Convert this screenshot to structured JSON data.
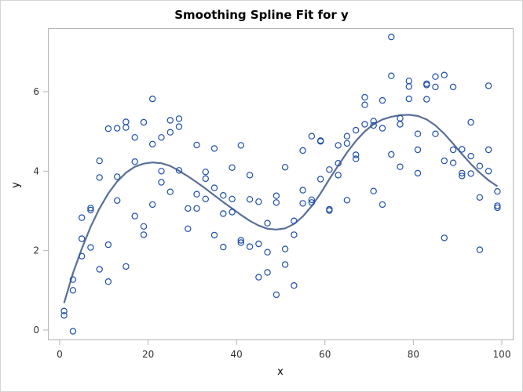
{
  "chart_data": {
    "type": "scatter",
    "title": "Smoothing Spline Fit for y",
    "xlabel": "x",
    "ylabel": "y",
    "xlim": [
      0,
      100
    ],
    "ylim": [
      0,
      7.4
    ],
    "xticks": [
      0,
      20,
      40,
      60,
      80,
      100
    ],
    "yticks": [
      0,
      2,
      4,
      6
    ],
    "grid": false,
    "legend": null,
    "colors": {
      "markers": "#1f4fa8",
      "fit_line": "#5a6f96",
      "frame": "#b4b4b4"
    },
    "series": [
      {
        "name": "y",
        "kind": "scatter",
        "points": [
          [
            1,
            0.48
          ],
          [
            1,
            0.37
          ],
          [
            3,
            1.27
          ],
          [
            3,
            1.0
          ],
          [
            3,
            -0.03
          ],
          [
            5,
            2.83
          ],
          [
            5,
            2.3
          ],
          [
            5,
            1.86
          ],
          [
            7,
            3.07
          ],
          [
            7,
            3.02
          ],
          [
            7,
            2.08
          ],
          [
            9,
            4.26
          ],
          [
            9,
            3.84
          ],
          [
            9,
            1.53
          ],
          [
            11,
            5.07
          ],
          [
            11,
            2.15
          ],
          [
            11,
            1.22
          ],
          [
            13,
            5.08
          ],
          [
            13,
            3.86
          ],
          [
            13,
            3.26
          ],
          [
            15,
            5.24
          ],
          [
            15,
            5.1
          ],
          [
            15,
            1.6
          ],
          [
            17,
            4.85
          ],
          [
            17,
            4.24
          ],
          [
            17,
            2.87
          ],
          [
            19,
            5.23
          ],
          [
            19,
            2.61
          ],
          [
            19,
            2.4
          ],
          [
            21,
            5.82
          ],
          [
            21,
            4.68
          ],
          [
            21,
            3.16
          ],
          [
            23,
            4.85
          ],
          [
            23,
            4.0
          ],
          [
            23,
            3.72
          ],
          [
            25,
            5.28
          ],
          [
            25,
            4.98
          ],
          [
            25,
            3.48
          ],
          [
            27,
            5.32
          ],
          [
            27,
            5.12
          ],
          [
            27,
            4.02
          ],
          [
            29,
            3.06
          ],
          [
            29,
            2.55
          ],
          [
            31,
            4.66
          ],
          [
            31,
            3.42
          ],
          [
            31,
            3.06
          ],
          [
            33,
            3.98
          ],
          [
            33,
            3.81
          ],
          [
            33,
            3.3
          ],
          [
            35,
            4.57
          ],
          [
            35,
            3.58
          ],
          [
            35,
            2.39
          ],
          [
            37,
            3.39
          ],
          [
            37,
            2.93
          ],
          [
            37,
            2.09
          ],
          [
            39,
            4.09
          ],
          [
            39,
            3.3
          ],
          [
            39,
            2.97
          ],
          [
            41,
            4.65
          ],
          [
            41,
            2.26
          ],
          [
            41,
            2.2
          ],
          [
            43,
            3.9
          ],
          [
            43,
            3.29
          ],
          [
            43,
            2.1
          ],
          [
            45,
            3.23
          ],
          [
            45,
            2.17
          ],
          [
            45,
            1.33
          ],
          [
            47,
            2.69
          ],
          [
            47,
            1.96
          ],
          [
            47,
            1.45
          ],
          [
            49,
            3.38
          ],
          [
            49,
            3.21
          ],
          [
            49,
            0.89
          ],
          [
            51,
            4.1
          ],
          [
            51,
            2.04
          ],
          [
            51,
            1.65
          ],
          [
            53,
            2.75
          ],
          [
            53,
            2.4
          ],
          [
            53,
            1.12
          ],
          [
            55,
            4.52
          ],
          [
            55,
            3.52
          ],
          [
            55,
            3.19
          ],
          [
            57,
            4.88
          ],
          [
            57,
            3.28
          ],
          [
            57,
            3.21
          ],
          [
            59,
            4.77
          ],
          [
            59,
            4.75
          ],
          [
            59,
            3.8
          ],
          [
            61,
            4.04
          ],
          [
            61,
            3.04
          ],
          [
            61,
            3.01
          ],
          [
            63,
            4.65
          ],
          [
            63,
            4.2
          ],
          [
            63,
            3.9
          ],
          [
            65,
            4.88
          ],
          [
            65,
            4.7
          ],
          [
            65,
            3.27
          ],
          [
            67,
            5.03
          ],
          [
            67,
            4.41
          ],
          [
            67,
            4.31
          ],
          [
            69,
            5.86
          ],
          [
            69,
            5.67
          ],
          [
            69,
            5.18
          ],
          [
            71,
            5.26
          ],
          [
            71,
            5.15
          ],
          [
            71,
            3.5
          ],
          [
            73,
            5.78
          ],
          [
            73,
            5.08
          ],
          [
            73,
            3.16
          ],
          [
            75,
            7.38
          ],
          [
            75,
            6.4
          ],
          [
            75,
            4.42
          ],
          [
            77,
            5.33
          ],
          [
            77,
            5.18
          ],
          [
            77,
            4.11
          ],
          [
            79,
            6.27
          ],
          [
            79,
            6.13
          ],
          [
            79,
            5.82
          ],
          [
            81,
            4.94
          ],
          [
            81,
            4.54
          ],
          [
            81,
            3.95
          ],
          [
            83,
            6.2
          ],
          [
            83,
            6.17
          ],
          [
            83,
            5.81
          ],
          [
            85,
            6.38
          ],
          [
            85,
            6.12
          ],
          [
            85,
            4.94
          ],
          [
            87,
            6.42
          ],
          [
            87,
            4.26
          ],
          [
            87,
            2.32
          ],
          [
            89,
            6.12
          ],
          [
            89,
            4.54
          ],
          [
            89,
            4.21
          ],
          [
            91,
            4.55
          ],
          [
            91,
            3.95
          ],
          [
            91,
            3.88
          ],
          [
            93,
            5.23
          ],
          [
            93,
            4.38
          ],
          [
            93,
            3.94
          ],
          [
            95,
            4.13
          ],
          [
            95,
            3.34
          ],
          [
            95,
            2.02
          ],
          [
            97,
            6.15
          ],
          [
            97,
            4.54
          ],
          [
            97,
            4.0
          ],
          [
            99,
            3.49
          ],
          [
            99,
            3.13
          ],
          [
            99,
            3.08
          ]
        ]
      },
      {
        "name": "Smoothing spline fit",
        "kind": "line",
        "points": [
          [
            1,
            0.68
          ],
          [
            3,
            1.43
          ],
          [
            5,
            2.05
          ],
          [
            7,
            2.6
          ],
          [
            9,
            3.06
          ],
          [
            11,
            3.44
          ],
          [
            13,
            3.74
          ],
          [
            15,
            3.96
          ],
          [
            17,
            4.11
          ],
          [
            19,
            4.19
          ],
          [
            21,
            4.22
          ],
          [
            23,
            4.2
          ],
          [
            25,
            4.13
          ],
          [
            27,
            4.01
          ],
          [
            29,
            3.87
          ],
          [
            31,
            3.72
          ],
          [
            33,
            3.56
          ],
          [
            35,
            3.39
          ],
          [
            37,
            3.22
          ],
          [
            39,
            3.06
          ],
          [
            41,
            2.9
          ],
          [
            43,
            2.75
          ],
          [
            45,
            2.63
          ],
          [
            47,
            2.55
          ],
          [
            49,
            2.53
          ],
          [
            51,
            2.56
          ],
          [
            53,
            2.67
          ],
          [
            55,
            2.86
          ],
          [
            57,
            3.12
          ],
          [
            59,
            3.44
          ],
          [
            61,
            3.8
          ],
          [
            63,
            4.14
          ],
          [
            65,
            4.47
          ],
          [
            67,
            4.76
          ],
          [
            69,
            5.0
          ],
          [
            71,
            5.18
          ],
          [
            73,
            5.3
          ],
          [
            75,
            5.37
          ],
          [
            77,
            5.41
          ],
          [
            79,
            5.42
          ],
          [
            81,
            5.39
          ],
          [
            83,
            5.3
          ],
          [
            85,
            5.15
          ],
          [
            87,
            4.94
          ],
          [
            89,
            4.69
          ],
          [
            91,
            4.43
          ],
          [
            93,
            4.18
          ],
          [
            95,
            3.96
          ],
          [
            97,
            3.77
          ],
          [
            99,
            3.62
          ]
        ]
      }
    ]
  }
}
